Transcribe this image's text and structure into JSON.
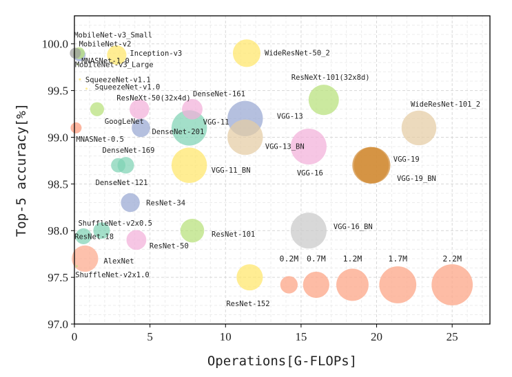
{
  "chart_data": {
    "type": "scatter",
    "title": "",
    "xlabel": "Operations[G-FLOPs]",
    "ylabel": "Top-5 accuracy[%]",
    "xlim": [
      0,
      27.5
    ],
    "ylim": [
      97.0,
      100.3
    ],
    "xticks": [
      0,
      5,
      10,
      15,
      20,
      25
    ],
    "yticks": [
      97.0,
      97.5,
      98.0,
      98.5,
      99.0,
      99.5,
      100.0
    ],
    "xtick_labels": [
      "0",
      "5",
      "10",
      "15",
      "20",
      "25"
    ],
    "ytick_labels": [
      "97.0",
      "97.5",
      "98.0",
      "98.5",
      "99.0",
      "99.5",
      "100.0"
    ],
    "grid": true,
    "size_encoding": "parameters",
    "points": [
      {
        "label": "MobileNet-v3_Small",
        "x": 0.06,
        "y": 99.9,
        "size": 0.02,
        "color": "#9e9e9e"
      },
      {
        "label": "MobileNet-v2",
        "x": 0.3,
        "y": 99.9,
        "size": 0.03,
        "color": "#b7e07a"
      },
      {
        "label": "MNASNet-1.0",
        "x": 0.33,
        "y": 99.88,
        "size": 0.04,
        "color": "#98a8d2"
      },
      {
        "label": "Inception-v3",
        "x": 2.8,
        "y": 99.88,
        "size": 0.24,
        "color": "#ffe66a"
      },
      {
        "label": "MobileNet-v3_Large",
        "x": 0.22,
        "y": 99.78,
        "size": 0.0,
        "color": "#b7e07a"
      },
      {
        "label": "SqueezeNet-v1.1",
        "x": 0.36,
        "y": 99.62,
        "size": 0.0,
        "color": "#ffe66a"
      },
      {
        "label": "SqueezeNet-v1.0",
        "x": 0.8,
        "y": 99.52,
        "size": 0.0,
        "color": "#ffe66a"
      },
      {
        "label": "ResNeXt-50(32x4d)",
        "x": 4.3,
        "y": 99.3,
        "size": 0.25,
        "color": "#f2b0d9"
      },
      {
        "label": "DenseNet-161",
        "x": 7.8,
        "y": 99.3,
        "size": 0.29,
        "color": "#f2b0d9"
      },
      {
        "label": "GoogLeNet",
        "x": 1.5,
        "y": 99.3,
        "size": 0.07,
        "color": "#b7e07a"
      },
      {
        "label": "DenseNet-201",
        "x": 4.4,
        "y": 99.1,
        "size": 0.2,
        "color": "#98a8d2"
      },
      {
        "label": "VGG-11",
        "x": 7.6,
        "y": 99.1,
        "size": 1.33,
        "color": "#7fd3b4"
      },
      {
        "label": "VGG-13",
        "x": 11.3,
        "y": 99.2,
        "size": 1.33,
        "color": "#98a8d2"
      },
      {
        "label": "VGG-13_BN",
        "x": 11.3,
        "y": 99.0,
        "size": 1.33,
        "color": "#e5cca3"
      },
      {
        "label": "MNASNet-0.5",
        "x": 0.11,
        "y": 99.1,
        "size": 0.02,
        "color": "#fc9a7c"
      },
      {
        "label": "ResNeXt-101(32x8d)",
        "x": 16.5,
        "y": 99.4,
        "size": 0.89,
        "color": "#b7e07a"
      },
      {
        "label": "WideResNet-50_2",
        "x": 11.4,
        "y": 99.9,
        "size": 0.69,
        "color": "#ffe66a"
      },
      {
        "label": "WideResNet-101_2",
        "x": 22.8,
        "y": 99.1,
        "size": 1.27,
        "color": "#e5cca3"
      },
      {
        "label": "VGG-16",
        "x": 15.5,
        "y": 98.9,
        "size": 1.38,
        "color": "#f2b0d9"
      },
      {
        "label": "VGG-19",
        "x": 19.6,
        "y": 98.7,
        "size": 1.44,
        "color": "#d18a35"
      },
      {
        "label": "VGG-19_BN",
        "x": 19.7,
        "y": 98.7,
        "size": 1.44,
        "color": "#d18a35"
      },
      {
        "label": "DenseNet-169",
        "x": 3.4,
        "y": 98.7,
        "size": 0.14,
        "color": "#7fd3b4"
      },
      {
        "label": "DenseNet-121",
        "x": 2.9,
        "y": 98.7,
        "size": 0.08,
        "color": "#7fd3b4"
      },
      {
        "label": "VGG-11_BN",
        "x": 7.6,
        "y": 98.7,
        "size": 1.33,
        "color": "#ffe66a"
      },
      {
        "label": "ResNet-34",
        "x": 3.7,
        "y": 98.3,
        "size": 0.22,
        "color": "#98a8d2"
      },
      {
        "label": "ShuffleNet-v2x0.5",
        "x": 1.8,
        "y": 98.0,
        "size": 0.14,
        "color": "#7fd3b4"
      },
      {
        "label": "ResNet-18",
        "x": 0.6,
        "y": 97.94,
        "size": 0.12,
        "color": "#7fd3b4"
      },
      {
        "label": "ResNet-101",
        "x": 7.8,
        "y": 98.0,
        "size": 0.45,
        "color": "#b7e07a"
      },
      {
        "label": "ResNet-50",
        "x": 4.1,
        "y": 97.9,
        "size": 0.26,
        "color": "#f2b0d9"
      },
      {
        "label": "VGG-16_BN",
        "x": 15.5,
        "y": 98.0,
        "size": 1.38,
        "color": "#c9c9c9"
      },
      {
        "label": "AlexNet",
        "x": 0.7,
        "y": 97.7,
        "size": 0.61,
        "color": "#fca98c"
      },
      {
        "label": "ShuffleNet-v2x1.0",
        "x": 0.15,
        "y": 97.62,
        "size": 0.0,
        "color": "#b7e07a"
      },
      {
        "label": "ResNet-152",
        "x": 11.6,
        "y": 97.5,
        "size": 0.6,
        "color": "#ffe66a"
      }
    ],
    "size_legend": {
      "labels": [
        "0.2M",
        "0.7M",
        "1.2M",
        "1.7M",
        "2.2M"
      ],
      "x": [
        14.2,
        16.0,
        18.4,
        21.4,
        25.0
      ],
      "sizes": [
        0.2,
        0.7,
        1.2,
        1.7,
        2.2
      ],
      "y": 97.42,
      "color": "#fca98c"
    }
  }
}
